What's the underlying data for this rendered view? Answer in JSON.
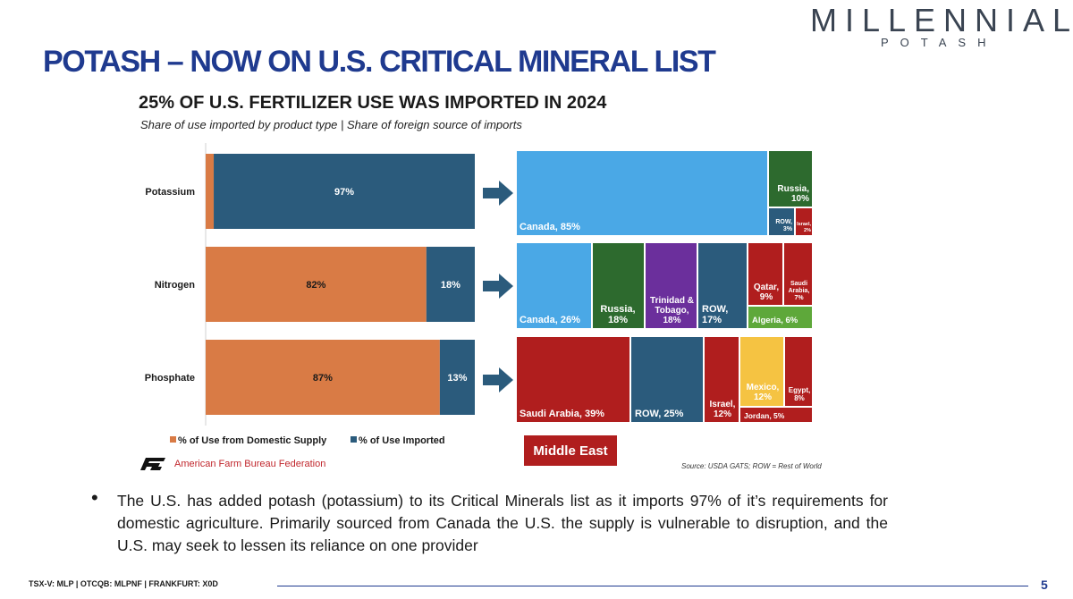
{
  "slide": {
    "title": "POTASH – NOW ON U.S. CRITICAL MINERAL LIST",
    "logo_main": "MILLENNIAL",
    "logo_sub": "POTASH",
    "bullet": "•",
    "body": "The U.S. has added potash (potassium) to its Critical Minerals list as it imports 97% of it’s requirements for domestic agriculture.  Primarily sourced from Canada the U.S. the supply is vulnerable to disruption, and the U.S. may seek to lessen its reliance on one provider",
    "footer": "TSX-V: MLP  |  OTCQB: MLPNF  | FRANKFURT: X0D",
    "page_number": "5"
  },
  "chart_data": [
    {
      "type": "bar",
      "orientation": "horizontal",
      "stacked": true,
      "title": "25% OF U.S. FERTILIZER USE WAS IMPORTED IN 2024",
      "subtitle": "Share of use imported by product type | Share of foreign source of imports",
      "categories": [
        "Potassium",
        "Nitrogen",
        "Phosphate"
      ],
      "series": [
        {
          "name": "% of Use from Domestic Supply",
          "values": [
            3,
            82,
            87
          ],
          "labels": [
            "3%",
            "82%",
            "87%"
          ],
          "color": "#d97b45"
        },
        {
          "name": "% of Use Imported",
          "values": [
            97,
            18,
            13
          ],
          "labels": [
            "97%",
            "18%",
            "13%"
          ],
          "color": "#2b5b7c"
        }
      ],
      "xlim": [
        0,
        100
      ],
      "legend_position": "bottom",
      "grid": false
    },
    {
      "type": "treemap",
      "groups": [
        {
          "category": "Potassium",
          "items": [
            {
              "label": "Canada, 85%",
              "value": 85,
              "color": "#4aa8e6"
            },
            {
              "label": "Russia, 10%",
              "value": 10,
              "color": "#2d6a2e"
            },
            {
              "label": "ROW, 3%",
              "value": 3,
              "color": "#2b5b7c"
            },
            {
              "label": "Israel, 2%",
              "value": 2,
              "color": "#b01e1e"
            }
          ]
        },
        {
          "category": "Nitrogen",
          "items": [
            {
              "label": "Canada, 26%",
              "value": 26,
              "color": "#4aa8e6"
            },
            {
              "label": "Russia, 18%",
              "value": 18,
              "color": "#2d6a2e"
            },
            {
              "label": "Trinidad & Tobago, 18%",
              "value": 18,
              "color": "#6b2f9c"
            },
            {
              "label": "ROW, 17%",
              "value": 17,
              "color": "#2b5b7c"
            },
            {
              "label": "Qatar, 9%",
              "value": 9,
              "color": "#b01e1e"
            },
            {
              "label": "Saudi Arabia, 7%",
              "value": 7,
              "color": "#b01e1e"
            },
            {
              "label": "Algeria, 6%",
              "value": 6,
              "color": "#5ea83a"
            }
          ]
        },
        {
          "category": "Phosphate",
          "items": [
            {
              "label": "Saudi Arabia, 39%",
              "value": 39,
              "color": "#b01e1e"
            },
            {
              "label": "ROW, 25%",
              "value": 25,
              "color": "#2b5b7c"
            },
            {
              "label": "Israel, 12%",
              "value": 12,
              "color": "#b01e1e"
            },
            {
              "label": "Mexico, 12%",
              "value": 12,
              "color": "#f5c342"
            },
            {
              "label": "Egypt, 8%",
              "value": 8,
              "color": "#b01e1e"
            },
            {
              "label": "Jordan, 5%",
              "value": 5,
              "color": "#b01e1e"
            }
          ]
        }
      ],
      "highlight_label": "Middle East",
      "highlight_color": "#b01e1e"
    }
  ],
  "attribution": {
    "org": "American Farm Bureau Federation",
    "source": "Source: USDA GATS; ROW = Rest of World"
  }
}
